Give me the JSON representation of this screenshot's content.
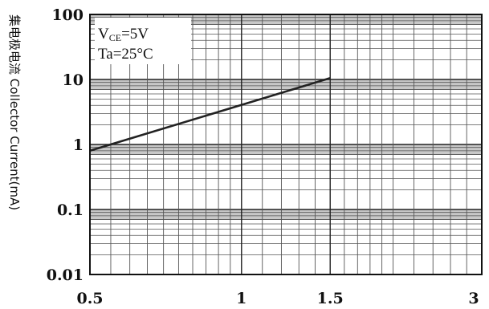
{
  "chart_data": {
    "type": "line",
    "x_scale": "log",
    "y_scale": "log",
    "xlim": [
      0.5,
      3
    ],
    "ylim": [
      0.01,
      100
    ],
    "x_ticks": [
      "0.5",
      "1",
      "1.5",
      "3"
    ],
    "y_ticks": [
      "100",
      "10",
      "1",
      "0.1",
      "0.01"
    ],
    "ylabel": "集电极电流 Collector  Current(mA)",
    "xlabel": "",
    "grid": true,
    "conditions": {
      "vce_main": "V",
      "vce_sub": "CE",
      "vce_value": "=5V",
      "ta": "Ta=25°C"
    },
    "series": [
      {
        "x": [
          0.5,
          1.5
        ],
        "y": [
          0.8,
          10.5
        ]
      }
    ],
    "colors": {
      "line": "#222222",
      "grid": "#555555",
      "band": "#c8c8c8",
      "frame": "#111111"
    }
  }
}
